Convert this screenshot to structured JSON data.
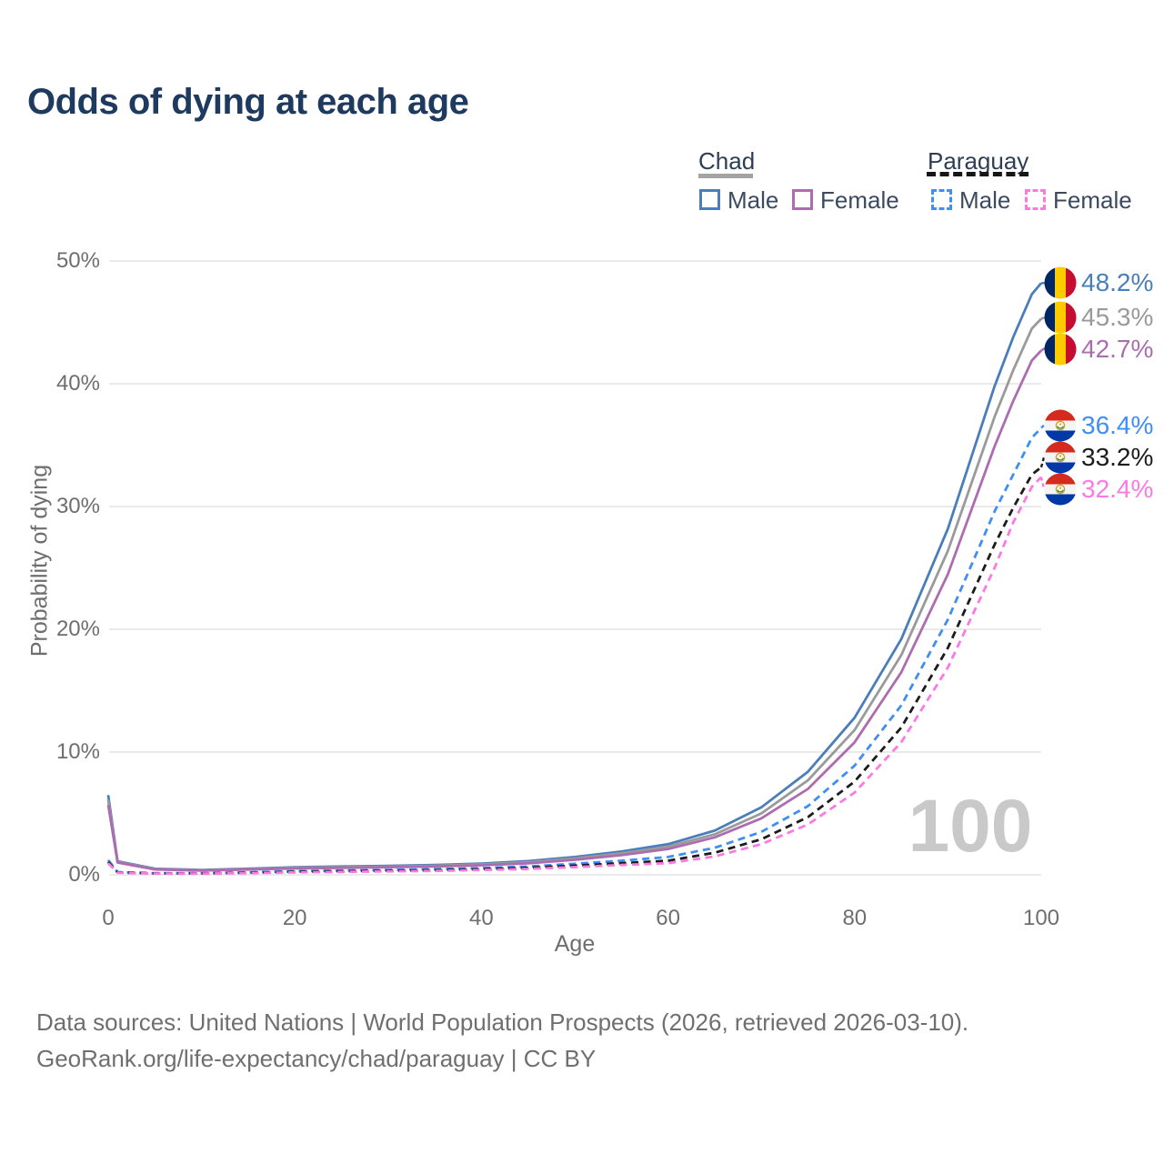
{
  "title": "Odds of dying at each age",
  "legend": {
    "groups": [
      {
        "name": "Chad",
        "line_style": "solid",
        "items": [
          {
            "label": "Male"
          },
          {
            "label": "Female"
          }
        ]
      },
      {
        "name": "Paraguay",
        "line_style": "dashed",
        "items": [
          {
            "label": "Male"
          },
          {
            "label": "Female"
          }
        ]
      }
    ]
  },
  "y_axis": {
    "title": "Probability of dying",
    "tick_labels": [
      "0%",
      "10%",
      "20%",
      "30%",
      "40%",
      "50%"
    ],
    "tick_values": [
      0,
      10,
      20,
      30,
      40,
      50
    ]
  },
  "x_axis": {
    "title": "Age",
    "tick_labels": [
      "0",
      "20",
      "40",
      "60",
      "80",
      "100"
    ],
    "tick_values": [
      0,
      20,
      40,
      60,
      80,
      100
    ]
  },
  "watermark": {
    "text": "100"
  },
  "footer": {
    "line1": "Data sources: United Nations | World Population Prospects (2026, retrieved 2026-03-10).",
    "line2": "GeoRank.org/life-expectancy/chad/paraguay | CC BY"
  },
  "colors": {
    "chad_male": "#4a7ebb",
    "chad_both": "#9a9a9a",
    "chad_female": "#ad6cb0",
    "paraguay_male": "#3f8ef5",
    "paraguay_both": "#1c1c1c",
    "paraguay_female": "#fb7ae2",
    "grid": "#e4e4e4",
    "axis_text": "#6e6e6e",
    "title_text": "#1e3a5f",
    "legend_text": "#3a4a61",
    "watermark": "#c9c9c9",
    "chad_flag": [
      "#002664",
      "#fecb00",
      "#c60c30"
    ],
    "paraguay_flag": [
      "#d52b1e",
      "#f4f4f4",
      "#0038a8"
    ],
    "paraguay_emblem_ring": "#c9a227",
    "paraguay_emblem_green": "#2e8b3a",
    "paraguay_emblem_yellow": "#d8b200"
  },
  "chart_data": {
    "type": "line",
    "title": "Odds of dying at each age",
    "xlabel": "Age",
    "ylabel": "Probability of dying",
    "xlim": [
      0,
      100
    ],
    "ylim": [
      0,
      50
    ],
    "y_unit": "%",
    "grid": true,
    "legend_position": "top-right",
    "hover_age_indicator": "100",
    "ages": [
      0,
      1,
      5,
      10,
      15,
      20,
      25,
      30,
      35,
      40,
      45,
      50,
      55,
      60,
      65,
      70,
      75,
      80,
      85,
      90,
      95,
      97,
      99,
      100
    ],
    "series": [
      {
        "name": "Chad Male",
        "country": "Chad",
        "sex": "Male",
        "dash": "solid",
        "color_key": "chad_male",
        "flag": "chad",
        "end_label": "48.2%",
        "end_value": 48.2,
        "label_dy": 0,
        "values": [
          6.5,
          1.1,
          0.5,
          0.4,
          0.5,
          0.62,
          0.68,
          0.73,
          0.8,
          0.92,
          1.12,
          1.45,
          1.9,
          2.5,
          3.6,
          5.5,
          8.4,
          12.8,
          19.2,
          28.2,
          39.8,
          43.8,
          47.3,
          48.2
        ]
      },
      {
        "name": "Chad",
        "country": "Chad",
        "sex": "Both",
        "dash": "solid",
        "color_key": "chad_both",
        "flag": "chad",
        "end_label": "45.3%",
        "end_value": 45.3,
        "label_dy": -1,
        "values": [
          6.1,
          1.05,
          0.47,
          0.37,
          0.46,
          0.57,
          0.62,
          0.67,
          0.74,
          0.85,
          1.03,
          1.33,
          1.75,
          2.3,
          3.3,
          5.0,
          7.7,
          11.8,
          17.9,
          26.4,
          37.3,
          41.1,
          44.5,
          45.3
        ]
      },
      {
        "name": "Chad Female",
        "country": "Chad",
        "sex": "Female",
        "dash": "solid",
        "color_key": "chad_female",
        "flag": "chad",
        "end_label": "42.7%",
        "end_value": 42.7,
        "label_dy": -2,
        "values": [
          5.7,
          1.0,
          0.44,
          0.35,
          0.43,
          0.52,
          0.57,
          0.62,
          0.68,
          0.78,
          0.94,
          1.22,
          1.6,
          2.1,
          3.05,
          4.6,
          7.0,
          10.8,
          16.5,
          24.5,
          34.9,
          38.6,
          41.9,
          42.7
        ]
      },
      {
        "name": "Paraguay Male",
        "country": "Paraguay",
        "sex": "Male",
        "dash": "dashed",
        "color_key": "paraguay_male",
        "flag": "paraguay",
        "end_label": "36.4%",
        "end_value": 36.4,
        "label_dy": -3,
        "values": [
          1.2,
          0.22,
          0.13,
          0.13,
          0.2,
          0.3,
          0.35,
          0.4,
          0.46,
          0.55,
          0.68,
          0.9,
          1.15,
          1.45,
          2.2,
          3.5,
          5.6,
          8.9,
          13.8,
          20.8,
          29.6,
          32.6,
          35.6,
          36.4
        ]
      },
      {
        "name": "Paraguay",
        "country": "Paraguay",
        "sex": "Both",
        "dash": "dashed",
        "color_key": "paraguay_both",
        "flag": "paraguay",
        "end_label": "33.2%",
        "end_value": 33.2,
        "label_dy": -11,
        "values": [
          1.05,
          0.19,
          0.11,
          0.11,
          0.16,
          0.25,
          0.29,
          0.33,
          0.38,
          0.46,
          0.57,
          0.75,
          0.95,
          1.15,
          1.8,
          2.9,
          4.7,
          7.6,
          12.0,
          18.5,
          26.9,
          29.9,
          32.6,
          33.2
        ]
      },
      {
        "name": "Paraguay Female",
        "country": "Paraguay",
        "sex": "Female",
        "dash": "dashed",
        "color_key": "paraguay_female",
        "flag": "paraguay",
        "end_label": "32.4%",
        "end_value": 32.4,
        "label_dy": 13,
        "values": [
          0.95,
          0.17,
          0.1,
          0.1,
          0.13,
          0.2,
          0.24,
          0.28,
          0.32,
          0.39,
          0.48,
          0.63,
          0.8,
          0.95,
          1.5,
          2.5,
          4.1,
          6.7,
          10.8,
          16.9,
          25.0,
          28.7,
          31.6,
          32.4
        ]
      }
    ]
  }
}
